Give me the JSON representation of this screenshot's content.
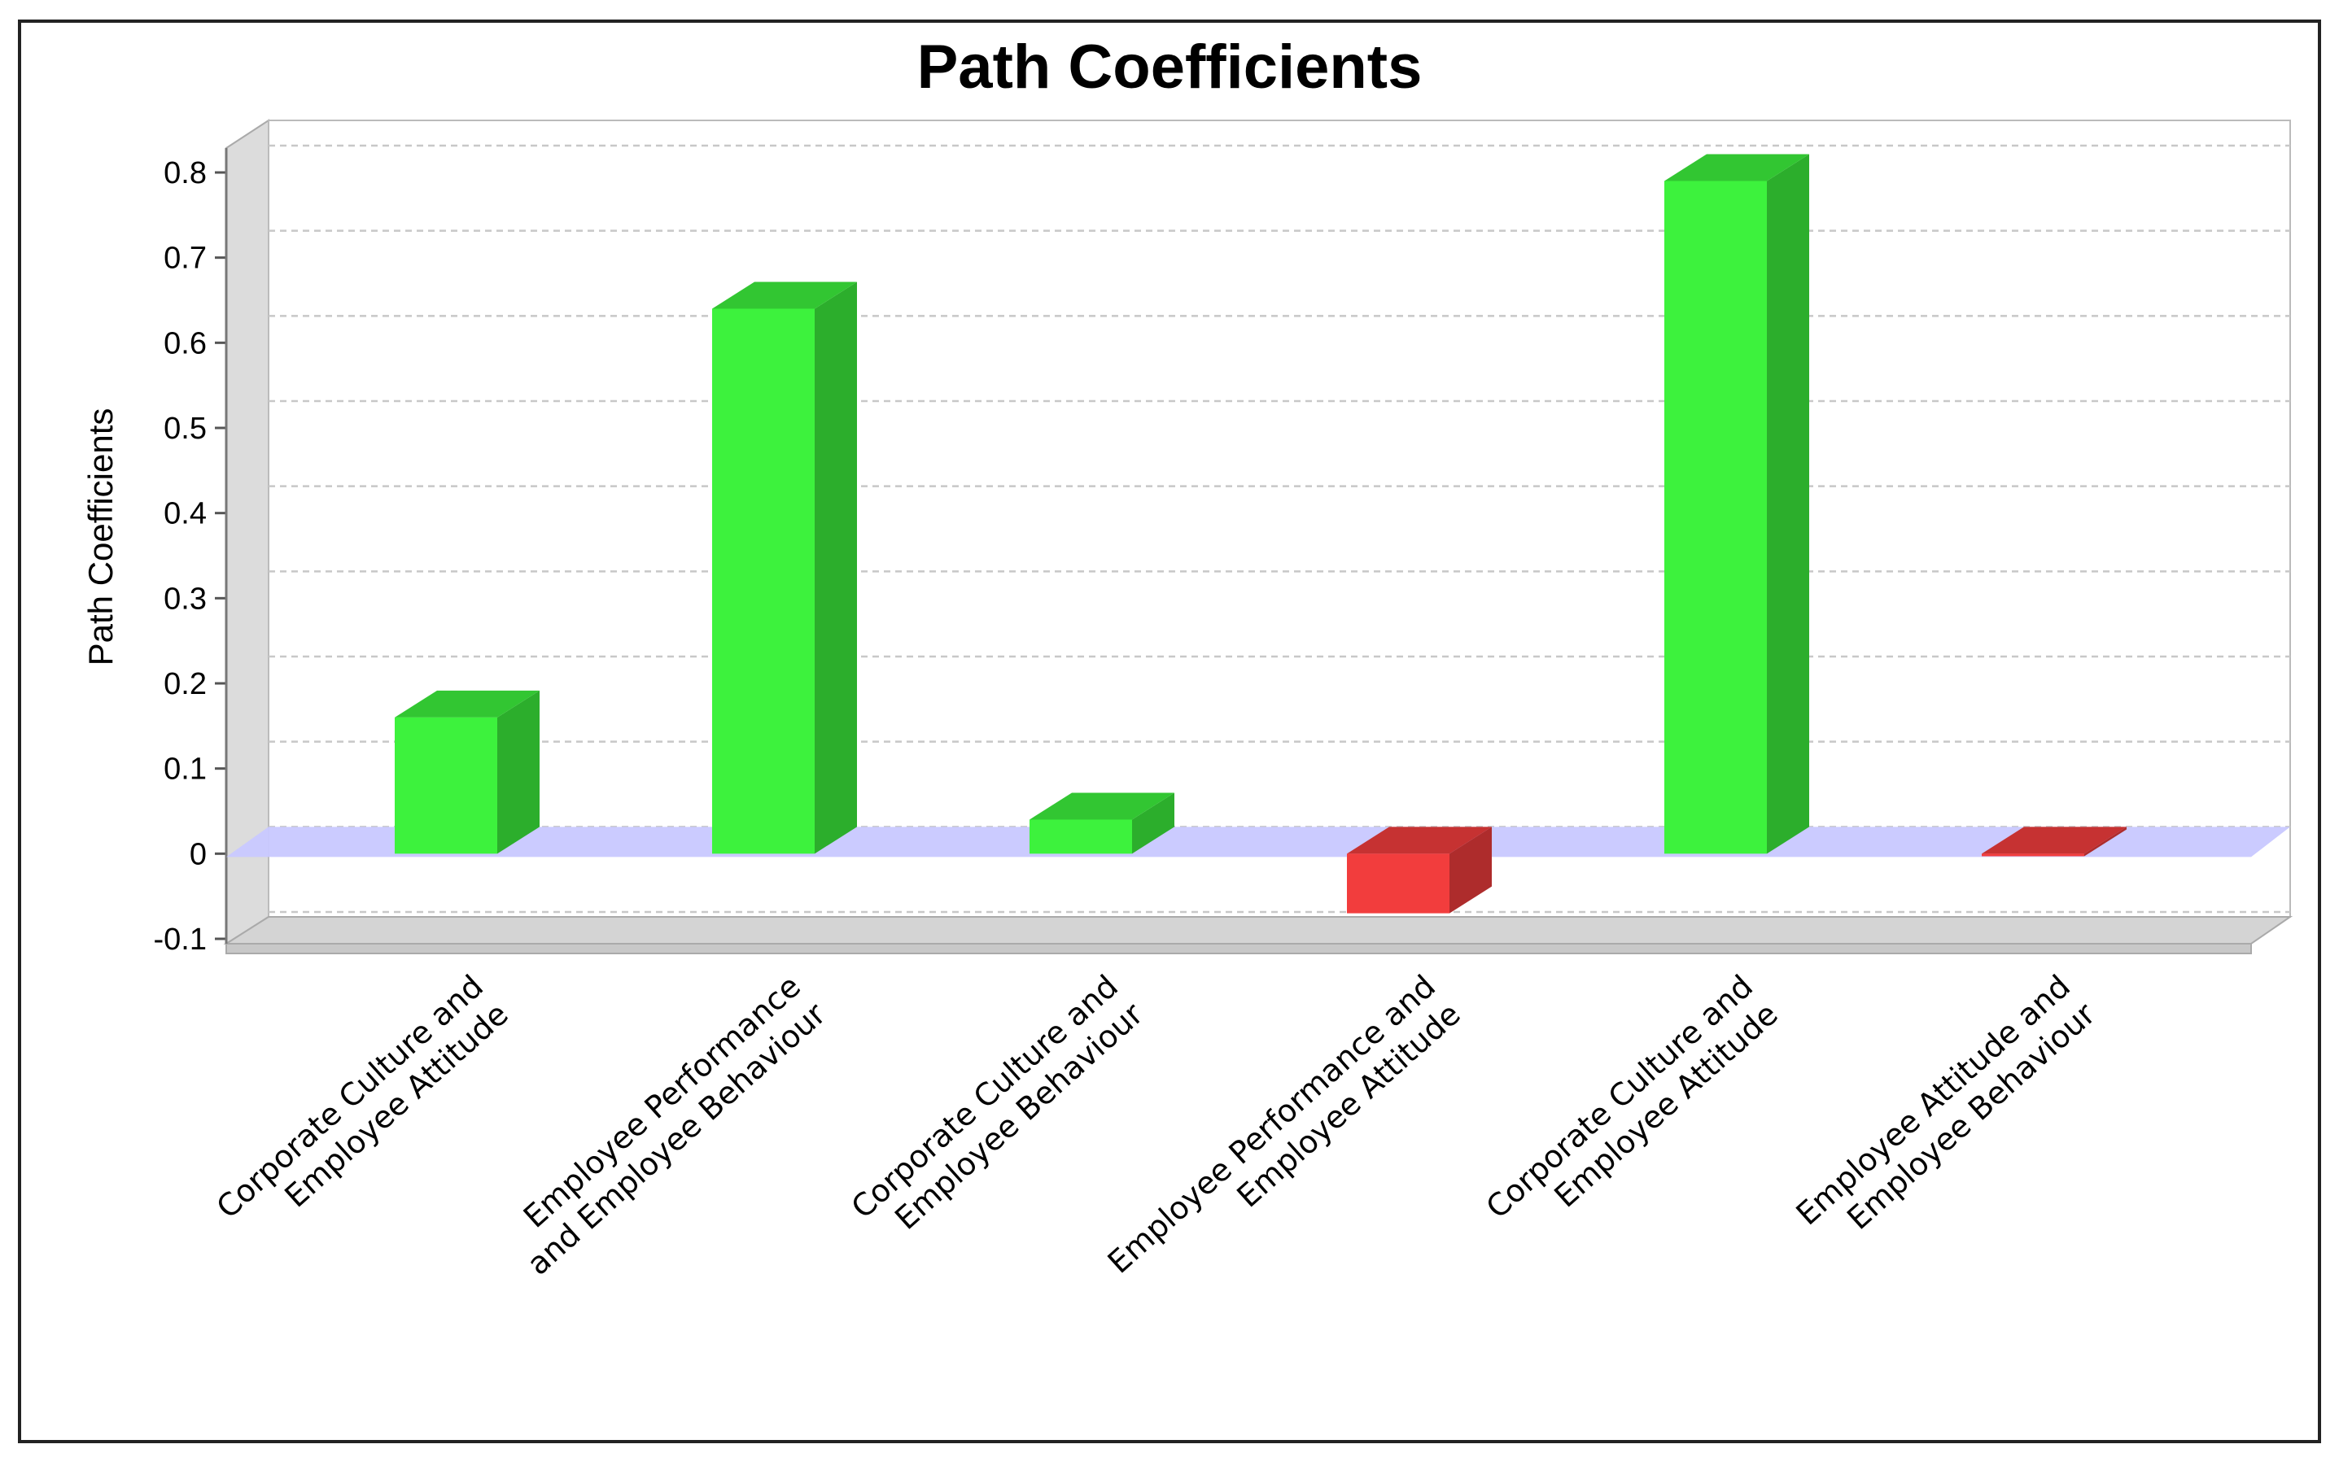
{
  "chart_data": {
    "type": "bar",
    "title": "Path Coefficients",
    "xlabel": "",
    "ylabel": "Path Coefficients",
    "ylim": [
      -0.1,
      0.8
    ],
    "yticks": [
      "0.8",
      "0.7",
      "0.6",
      "0.5",
      "0.4",
      "0.3",
      "0.2",
      "0.1",
      "0",
      "-0.1"
    ],
    "grid": true,
    "style": "3d",
    "positive_color": "#3df23d",
    "negative_color": "#f23d3d",
    "baseline_color": "#c8c8ff",
    "categories": [
      [
        "Corporate Culture and",
        "Employee Attitude"
      ],
      [
        "Employee Performance",
        "and Employee Behaviour"
      ],
      [
        "Corporate Culture and",
        "Employee Behaviour"
      ],
      [
        "Employee Performance and",
        "Employee Attitude"
      ],
      [
        "Corporate Culture and",
        "Employee Attitude"
      ],
      [
        "Employee Attitude and",
        "Employee Behaviour"
      ]
    ],
    "values": [
      0.16,
      0.64,
      0.04,
      -0.07,
      0.79,
      -0.003
    ]
  }
}
